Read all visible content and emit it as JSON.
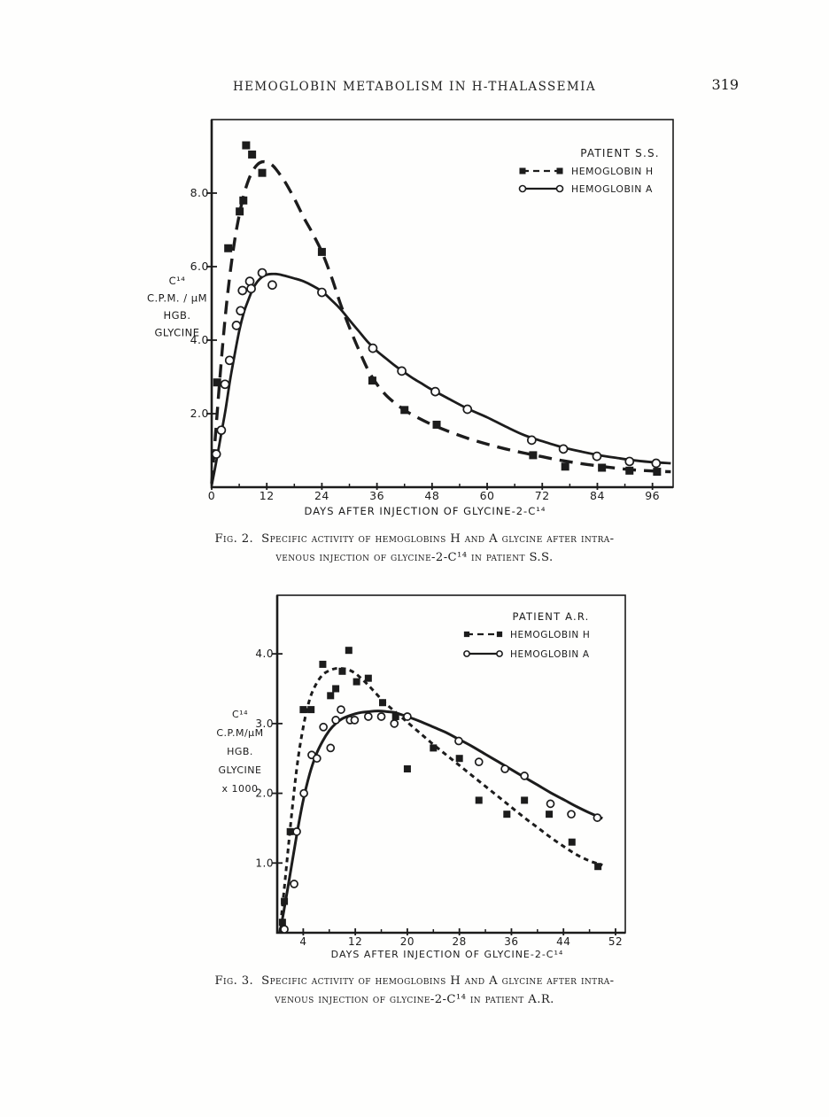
{
  "header": {
    "running_title": "HEMOGLOBIN METABOLISM IN H-THALASSEMIA",
    "page_number": "319"
  },
  "figures": [
    {
      "label": "Fig. 2.",
      "caption_line1": "Specific activity of hemoglobins H and A glycine after intra-",
      "caption_line2": "venous injection of glycine-2-C¹⁴ in patient S.S."
    },
    {
      "label": "Fig. 3.",
      "caption_line1": "Specific activity of hemoglobins H and A glycine after intra-",
      "caption_line2": "venous injection of glycine-2-C¹⁴ in patient A.R."
    }
  ],
  "colors": {
    "ink": "#1c1c1c",
    "paper": "#fefefd"
  },
  "chart_data": [
    {
      "id": "fig2",
      "type": "line",
      "title": "PATIENT S.S.",
      "xlabel": "DAYS AFTER INJECTION OF GLYCINE-2-C¹⁴",
      "ylabel_lines": [
        "C¹⁴",
        "C.P.M. / μM",
        "HGB.",
        "GLYCINE"
      ],
      "xlim": [
        0,
        100.5
      ],
      "ylim": [
        0,
        10
      ],
      "xticks": [
        0,
        12,
        24,
        36,
        48,
        60,
        72,
        84,
        96
      ],
      "yticks": [
        2,
        4,
        6,
        8
      ],
      "x_minor_step": 6,
      "grid": false,
      "legend_position": "top-right",
      "series": [
        {
          "name": "HEMOGLOBIN H",
          "marker": "filled-square",
          "line": "dashed",
          "points": [
            [
              1.2,
              2.85
            ],
            [
              3.6,
              6.5
            ],
            [
              6.1,
              7.5
            ],
            [
              6.9,
              7.8
            ],
            [
              7.5,
              9.3
            ],
            [
              8.8,
              9.05
            ],
            [
              11,
              8.55
            ],
            [
              24,
              6.4
            ],
            [
              35,
              2.9
            ],
            [
              42,
              2.1
            ],
            [
              49,
              1.7
            ],
            [
              70,
              0.87
            ],
            [
              77,
              0.56
            ],
            [
              85,
              0.53
            ],
            [
              91,
              0.45
            ],
            [
              97,
              0.42
            ]
          ],
          "curve": [
            [
              0,
              0.1
            ],
            [
              1,
              1.7
            ],
            [
              2,
              3.3
            ],
            [
              3,
              4.7
            ],
            [
              4,
              5.8
            ],
            [
              5,
              6.7
            ],
            [
              6,
              7.4
            ],
            [
              7,
              7.95
            ],
            [
              8,
              8.35
            ],
            [
              9,
              8.62
            ],
            [
              10,
              8.78
            ],
            [
              11,
              8.85
            ],
            [
              12,
              8.84
            ],
            [
              13,
              8.78
            ],
            [
              14,
              8.65
            ],
            [
              16,
              8.3
            ],
            [
              18,
              7.85
            ],
            [
              20,
              7.35
            ],
            [
              22,
              6.9
            ],
            [
              24,
              6.4
            ],
            [
              26,
              5.75
            ],
            [
              28,
              5.0
            ],
            [
              30,
              4.35
            ],
            [
              32,
              3.75
            ],
            [
              34,
              3.2
            ],
            [
              36,
              2.8
            ],
            [
              38,
              2.5
            ],
            [
              40,
              2.28
            ],
            [
              42,
              2.1
            ],
            [
              44,
              1.95
            ],
            [
              48,
              1.7
            ],
            [
              52,
              1.5
            ],
            [
              56,
              1.32
            ],
            [
              60,
              1.17
            ],
            [
              64,
              1.04
            ],
            [
              68,
              0.93
            ],
            [
              72,
              0.83
            ],
            [
              76,
              0.73
            ],
            [
              80,
              0.65
            ],
            [
              84,
              0.58
            ],
            [
              88,
              0.52
            ],
            [
              92,
              0.47
            ],
            [
              96,
              0.44
            ],
            [
              100,
              0.42
            ]
          ]
        },
        {
          "name": "HEMOGLOBIN A",
          "marker": "open-circle",
          "line": "solid",
          "points": [
            [
              1,
              0.9
            ],
            [
              2.1,
              1.55
            ],
            [
              2.9,
              2.8
            ],
            [
              3.9,
              3.45
            ],
            [
              5.4,
              4.4
            ],
            [
              6.3,
              4.8
            ],
            [
              6.7,
              5.35
            ],
            [
              8.3,
              5.6
            ],
            [
              8.6,
              5.4
            ],
            [
              11,
              5.83
            ],
            [
              13.2,
              5.5
            ],
            [
              24,
              5.3
            ],
            [
              35.1,
              3.78
            ],
            [
              41.4,
              3.16
            ],
            [
              48.7,
              2.6
            ],
            [
              55.7,
              2.12
            ],
            [
              69.7,
              1.28
            ],
            [
              76.6,
              1.04
            ],
            [
              83.9,
              0.84
            ],
            [
              91,
              0.7
            ],
            [
              96.8,
              0.65
            ]
          ],
          "curve": [
            [
              0,
              0.05
            ],
            [
              1,
              0.7
            ],
            [
              2,
              1.4
            ],
            [
              3,
              2.1
            ],
            [
              4,
              2.9
            ],
            [
              5,
              3.6
            ],
            [
              6,
              4.25
            ],
            [
              7,
              4.75
            ],
            [
              8,
              5.1
            ],
            [
              9,
              5.4
            ],
            [
              10,
              5.6
            ],
            [
              11,
              5.72
            ],
            [
              12,
              5.78
            ],
            [
              13,
              5.8
            ],
            [
              14,
              5.8
            ],
            [
              15,
              5.78
            ],
            [
              16,
              5.75
            ],
            [
              18,
              5.68
            ],
            [
              20,
              5.6
            ],
            [
              22,
              5.48
            ],
            [
              24,
              5.33
            ],
            [
              26,
              5.1
            ],
            [
              28,
              4.85
            ],
            [
              30,
              4.55
            ],
            [
              32,
              4.25
            ],
            [
              34,
              3.95
            ],
            [
              36,
              3.7
            ],
            [
              38,
              3.5
            ],
            [
              40,
              3.3
            ],
            [
              42,
              3.12
            ],
            [
              44,
              2.95
            ],
            [
              46,
              2.8
            ],
            [
              48,
              2.65
            ],
            [
              52,
              2.38
            ],
            [
              56,
              2.12
            ],
            [
              60,
              1.9
            ],
            [
              64,
              1.65
            ],
            [
              68,
              1.42
            ],
            [
              72,
              1.25
            ],
            [
              76,
              1.1
            ],
            [
              80,
              0.98
            ],
            [
              84,
              0.88
            ],
            [
              88,
              0.8
            ],
            [
              92,
              0.73
            ],
            [
              96,
              0.68
            ],
            [
              100,
              0.65
            ]
          ]
        }
      ]
    },
    {
      "id": "fig3",
      "type": "line",
      "title": "PATIENT A.R.",
      "xlabel": "DAYS AFTER INJECTION OF GLYCINE-2-C¹⁴",
      "ylabel_lines": [
        "C¹⁴",
        "C.P.M/μM",
        "HGB.",
        "GLYCINE",
        "x 1000"
      ],
      "xlim": [
        0,
        53.5
      ],
      "ylim": [
        0,
        4.84
      ],
      "xticks": [
        4,
        12,
        20,
        28,
        36,
        44,
        52
      ],
      "yticks": [
        1,
        2,
        3,
        4
      ],
      "x_minor_step": 4,
      "grid": false,
      "legend_position": "top-right",
      "series": [
        {
          "name": "HEMOGLOBIN H",
          "marker": "filled-square",
          "line": "dashed",
          "points": [
            [
              0.8,
              0.15
            ],
            [
              1.1,
              0.45
            ],
            [
              2,
              1.45
            ],
            [
              4,
              3.2
            ],
            [
              5.2,
              3.2
            ],
            [
              7,
              3.85
            ],
            [
              8.2,
              3.4
            ],
            [
              9,
              3.5
            ],
            [
              10,
              3.75
            ],
            [
              11,
              4.05
            ],
            [
              12.2,
              3.6
            ],
            [
              14,
              3.65
            ],
            [
              16.2,
              3.3
            ],
            [
              18.2,
              3.1
            ],
            [
              20,
              2.35
            ],
            [
              24,
              2.65
            ],
            [
              28,
              2.5
            ],
            [
              31,
              1.9
            ],
            [
              35.3,
              1.7
            ],
            [
              38,
              1.9
            ],
            [
              41.8,
              1.7
            ],
            [
              45.3,
              1.3
            ],
            [
              49.3,
              0.95
            ]
          ],
          "curve": [
            [
              0.4,
              0
            ],
            [
              1,
              0.55
            ],
            [
              2,
              1.5
            ],
            [
              3,
              2.35
            ],
            [
              4,
              2.95
            ],
            [
              5,
              3.35
            ],
            [
              6,
              3.57
            ],
            [
              7,
              3.7
            ],
            [
              8,
              3.76
            ],
            [
              9,
              3.79
            ],
            [
              10,
              3.79
            ],
            [
              11,
              3.77
            ],
            [
              12,
              3.72
            ],
            [
              13,
              3.64
            ],
            [
              14,
              3.55
            ],
            [
              15,
              3.45
            ],
            [
              16,
              3.35
            ],
            [
              17,
              3.26
            ],
            [
              18,
              3.18
            ],
            [
              19,
              3.1
            ],
            [
              20,
              3.02
            ],
            [
              22,
              2.86
            ],
            [
              24,
              2.7
            ],
            [
              26,
              2.55
            ],
            [
              28,
              2.4
            ],
            [
              30,
              2.25
            ],
            [
              32,
              2.1
            ],
            [
              34,
              1.95
            ],
            [
              36,
              1.8
            ],
            [
              38,
              1.65
            ],
            [
              40,
              1.51
            ],
            [
              42,
              1.37
            ],
            [
              44,
              1.24
            ],
            [
              46,
              1.12
            ],
            [
              48,
              1.03
            ],
            [
              50,
              0.97
            ]
          ]
        },
        {
          "name": "HEMOGLOBIN A",
          "marker": "open-circle",
          "line": "solid",
          "points": [
            [
              1.1,
              0.05
            ],
            [
              2.6,
              0.7
            ],
            [
              3,
              1.45
            ],
            [
              4.1,
              2.0
            ],
            [
              5.3,
              2.55
            ],
            [
              6.1,
              2.5
            ],
            [
              7.1,
              2.95
            ],
            [
              8.2,
              2.65
            ],
            [
              9,
              3.05
            ],
            [
              9.8,
              3.2
            ],
            [
              11.2,
              3.05
            ],
            [
              11.9,
              3.05
            ],
            [
              14,
              3.1
            ],
            [
              16,
              3.1
            ],
            [
              18,
              3.0
            ],
            [
              20,
              3.1
            ],
            [
              27.9,
              2.75
            ],
            [
              31,
              2.45
            ],
            [
              35,
              2.35
            ],
            [
              38,
              2.25
            ],
            [
              42,
              1.85
            ],
            [
              45.2,
              1.7
            ],
            [
              49.2,
              1.65
            ]
          ],
          "curve": [
            [
              0.4,
              0
            ],
            [
              1,
              0.3
            ],
            [
              2,
              0.85
            ],
            [
              3,
              1.4
            ],
            [
              4,
              1.9
            ],
            [
              5,
              2.28
            ],
            [
              6,
              2.56
            ],
            [
              7,
              2.75
            ],
            [
              8,
              2.9
            ],
            [
              9,
              3.0
            ],
            [
              10,
              3.07
            ],
            [
              11,
              3.11
            ],
            [
              12,
              3.14
            ],
            [
              13,
              3.16
            ],
            [
              14,
              3.17
            ],
            [
              15,
              3.18
            ],
            [
              16,
              3.18
            ],
            [
              17,
              3.17
            ],
            [
              18,
              3.16
            ],
            [
              19,
              3.13
            ],
            [
              20,
              3.1
            ],
            [
              22,
              3.03
            ],
            [
              24,
              2.95
            ],
            [
              26,
              2.87
            ],
            [
              28,
              2.77
            ],
            [
              30,
              2.67
            ],
            [
              32,
              2.56
            ],
            [
              34,
              2.45
            ],
            [
              36,
              2.34
            ],
            [
              38,
              2.23
            ],
            [
              40,
              2.12
            ],
            [
              42,
              2.01
            ],
            [
              44,
              1.91
            ],
            [
              46,
              1.81
            ],
            [
              48,
              1.72
            ],
            [
              50,
              1.64
            ]
          ]
        }
      ]
    }
  ]
}
